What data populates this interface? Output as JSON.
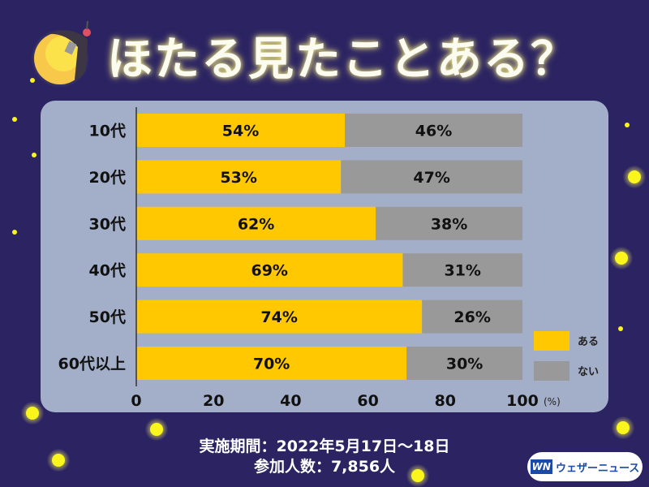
{
  "header": {
    "title": "ほたる見たことある？",
    "icon": "firefly-icon"
  },
  "chart_data": {
    "type": "bar",
    "stacked": true,
    "orientation": "horizontal",
    "categories": [
      "10代",
      "20代",
      "30代",
      "40代",
      "50代",
      "60代以上"
    ],
    "series": [
      {
        "name": "ある",
        "color": "#ffc800",
        "values": [
          54,
          53,
          62,
          69,
          74,
          70
        ],
        "labels": [
          "54%",
          "53%",
          "62%",
          "69%",
          "74%",
          "70%"
        ]
      },
      {
        "name": "ない",
        "color": "#999999",
        "values": [
          46,
          47,
          38,
          31,
          26,
          30
        ],
        "labels": [
          "46%",
          "47%",
          "38%",
          "31%",
          "26%",
          "30%"
        ]
      }
    ],
    "xlim": [
      0,
      100
    ],
    "xticks": [
      "0",
      "20",
      "40",
      "60",
      "80",
      "100"
    ],
    "xunit": "(%)",
    "legend": "right"
  },
  "footer": {
    "period": "実施期間：2022年5月17日～18日",
    "participants": "参加人数：7,856人"
  },
  "logo": {
    "mark": "WN",
    "name": "ウェザーニュース"
  },
  "colors": {
    "background": "#2b2362",
    "panel": "#a3aec8"
  }
}
